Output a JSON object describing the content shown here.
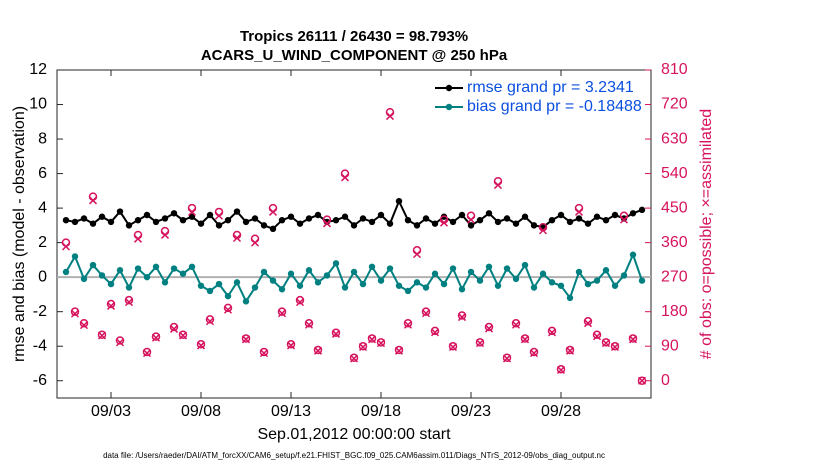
{
  "chart_data": {
    "type": "line",
    "title": "Tropics 26111 / 26430 = 98.793%",
    "subtitle": "ACARS_U_WIND_COMPONENT @ 250 hPa",
    "xlabel": "Sep.01,2012 00:00:00 start",
    "ylabel": "rmse and bias (model - observation)",
    "y2label": "# of obs: o=possible; ×=assimilated",
    "footnote": "data file: /Users/raeder/DAI/ATM_forcXX/CAM6_setup/f.e21.FHIST_BGC.f09_025.CAM6assim.011/Diags_NTrS_2012-09/obs_diag_output.nc",
    "xlim": [
      0,
      33
    ],
    "xticks": [
      {
        "value": 3,
        "label": "09/03"
      },
      {
        "value": 8,
        "label": "09/08"
      },
      {
        "value": 13,
        "label": "09/13"
      },
      {
        "value": 18,
        "label": "09/18"
      },
      {
        "value": 23,
        "label": "09/23"
      },
      {
        "value": 28,
        "label": "09/28"
      }
    ],
    "ylim": [
      -7,
      12
    ],
    "yticks": [
      -6,
      -4,
      -2,
      0,
      2,
      4,
      6,
      8,
      10,
      12
    ],
    "y2lim": [
      -45,
      810
    ],
    "y2ticks": [
      0,
      90,
      180,
      270,
      360,
      450,
      540,
      630,
      720,
      810
    ],
    "grid": false,
    "legend": "upper right",
    "x": [
      0.5,
      1,
      1.5,
      2,
      2.5,
      3,
      3.5,
      4,
      4.5,
      5,
      5.5,
      6,
      6.5,
      7,
      7.5,
      8,
      8.5,
      9,
      9.5,
      10,
      10.5,
      11,
      11.5,
      12,
      12.5,
      13,
      13.5,
      14,
      14.5,
      15,
      15.5,
      16,
      16.5,
      17,
      17.5,
      18,
      18.5,
      19,
      19.5,
      20,
      20.5,
      21,
      21.5,
      22,
      22.5,
      23,
      23.5,
      24,
      24.5,
      25,
      25.5,
      26,
      26.5,
      27,
      27.5,
      28,
      28.5,
      29,
      29.5,
      30,
      30.5,
      31,
      31.5,
      32,
      32.5
    ],
    "series": [
      {
        "name": "rmse grand pr = 3.2341",
        "color": "#000000",
        "marker": "dot",
        "line": true,
        "values": [
          3.3,
          3.2,
          3.4,
          3.1,
          3.5,
          3.2,
          3.8,
          3.0,
          3.3,
          3.6,
          3.2,
          3.4,
          3.7,
          3.3,
          3.5,
          3.1,
          3.6,
          3.0,
          3.3,
          3.8,
          3.2,
          3.4,
          3.0,
          2.8,
          3.3,
          3.5,
          3.1,
          3.4,
          3.6,
          3.2,
          3.3,
          3.5,
          3.0,
          3.4,
          3.2,
          3.6,
          3.1,
          4.4,
          3.3,
          3.0,
          3.4,
          3.1,
          3.5,
          3.2,
          3.6,
          3.0,
          3.3,
          3.7,
          3.2,
          3.4,
          3.1,
          3.5,
          3.0,
          2.9,
          3.3,
          3.6,
          3.2,
          3.4,
          3.1,
          3.5,
          3.3,
          3.6,
          3.4,
          3.7,
          3.9
        ]
      },
      {
        "name": "bias grand pr = -0.18488",
        "color": "#008080",
        "marker": "dot",
        "line": true,
        "values": [
          0.3,
          1.2,
          -0.1,
          0.7,
          0.1,
          -0.4,
          0.4,
          -0.6,
          0.5,
          0.0,
          0.6,
          -0.3,
          0.5,
          0.2,
          0.6,
          -0.5,
          -0.8,
          -0.4,
          -1.1,
          -0.3,
          -1.4,
          -0.6,
          0.3,
          -0.2,
          -0.7,
          0.2,
          -0.5,
          0.4,
          -0.3,
          0.1,
          0.8,
          -0.6,
          0.3,
          -0.4,
          0.6,
          -0.2,
          0.5,
          -0.5,
          -0.8,
          -0.3,
          -0.6,
          0.2,
          -0.4,
          0.5,
          -0.7,
          0.3,
          -0.2,
          0.6,
          -0.5,
          0.5,
          -0.1,
          0.7,
          -0.6,
          0.2,
          -0.3,
          -0.5,
          -1.2,
          0.3,
          -0.4,
          -0.2,
          0.4,
          -0.5,
          0.1,
          1.3,
          -0.2
        ]
      },
      {
        "color": "#d6135e",
        "marker": "circle",
        "line": false,
        "axis": "y2",
        "values": [
          360,
          180,
          150,
          480,
          120,
          200,
          105,
          210,
          380,
          75,
          115,
          390,
          140,
          120,
          450,
          95,
          160,
          440,
          190,
          380,
          110,
          370,
          75,
          450,
          180,
          95,
          210,
          150,
          80,
          420,
          125,
          540,
          60,
          90,
          110,
          100,
          700,
          80,
          150,
          340,
          180,
          130,
          420,
          90,
          170,
          430,
          100,
          140,
          520,
          60,
          150,
          110,
          75,
          400,
          130,
          30,
          80,
          450,
          155,
          120,
          100,
          90,
          430,
          110,
          0
        ]
      },
      {
        "color": "#d6135e",
        "marker": "x",
        "line": false,
        "axis": "y2",
        "values": [
          350,
          175,
          145,
          470,
          118,
          195,
          100,
          205,
          370,
          72,
          112,
          380,
          135,
          118,
          440,
          92,
          155,
          430,
          185,
          372,
          108,
          360,
          72,
          440,
          176,
          92,
          205,
          146,
          78,
          410,
          122,
          530,
          58,
          88,
          108,
          98,
          690,
          78,
          146,
          330,
          176,
          126,
          412,
          88,
          166,
          420,
          98,
          136,
          510,
          58,
          146,
          108,
          72,
          392,
          126,
          28,
          78,
          440,
          150,
          116,
          98,
          88,
          420,
          108,
          0
        ]
      }
    ]
  }
}
